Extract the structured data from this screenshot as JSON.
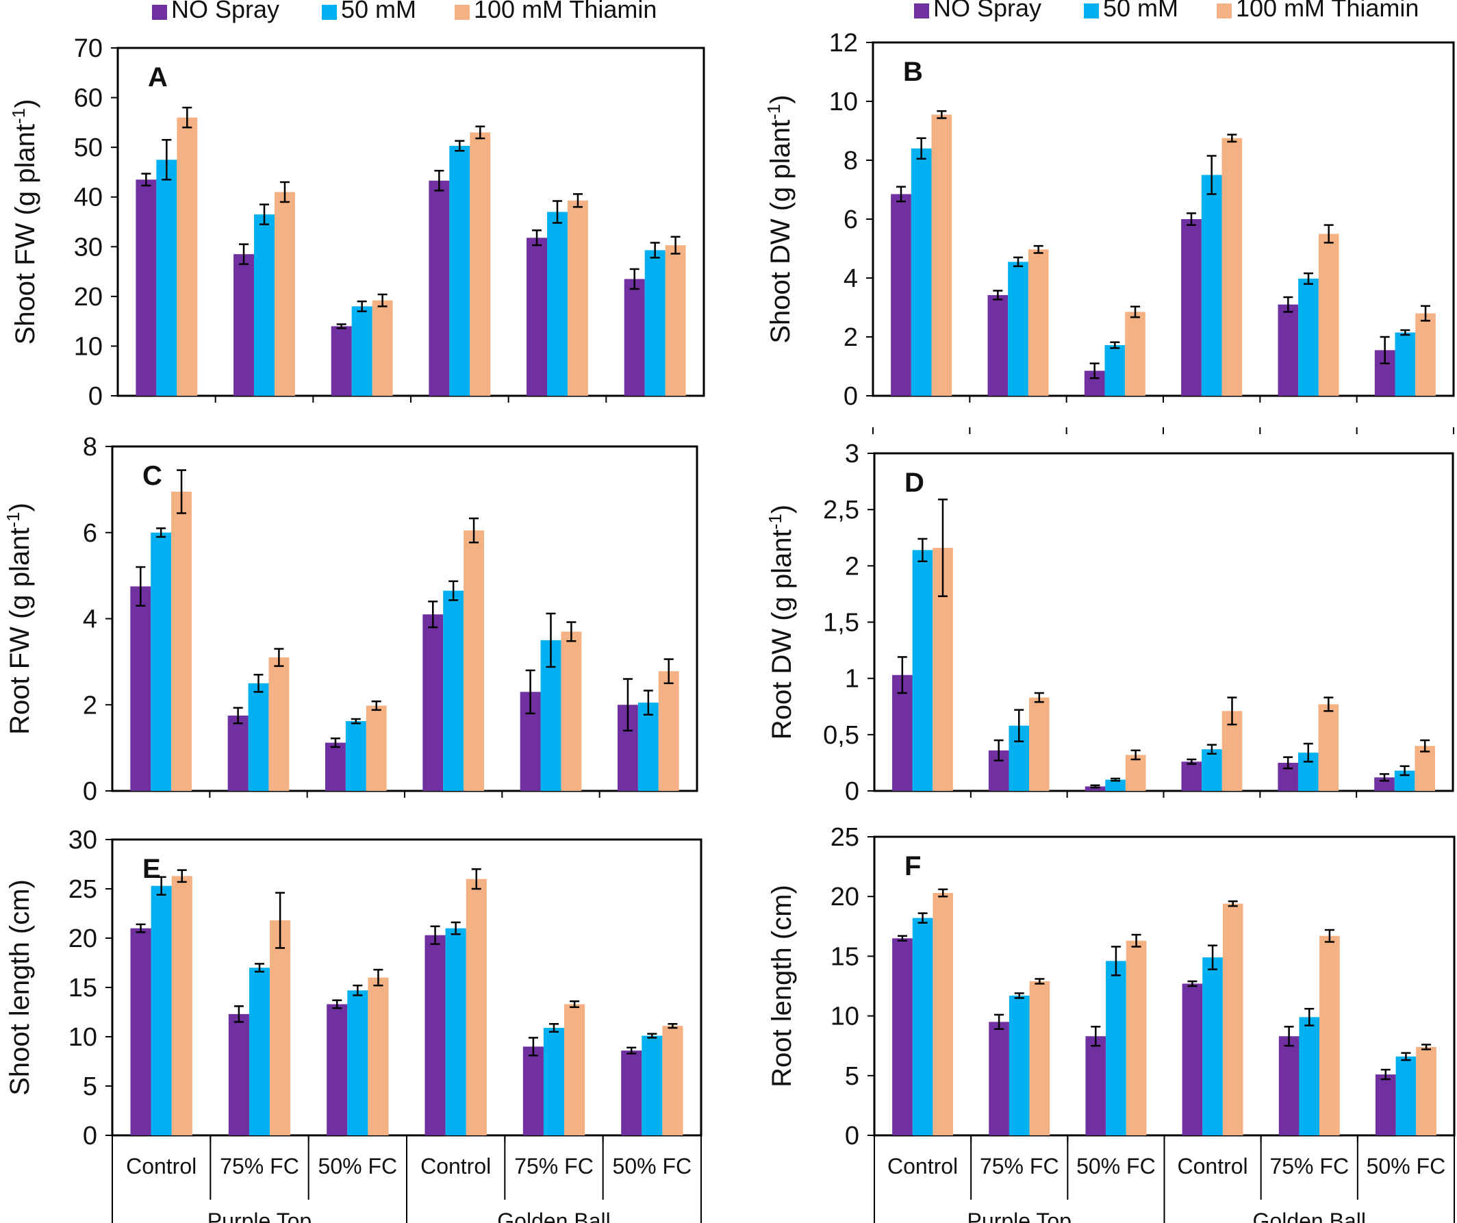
{
  "legend": {
    "entries": [
      {
        "label": "NO Spray",
        "color": "#7030a0"
      },
      {
        "label": "50 mM",
        "color": "#00b0f0"
      },
      {
        "label": "100 mM Thiamin",
        "color": "#f4b183"
      }
    ]
  },
  "x_axis": {
    "categories": [
      "Control",
      "75% FC",
      "50% FC",
      "Control",
      "75% FC",
      "50% FC"
    ],
    "groups": [
      "Purple Top",
      "Golden Ball"
    ]
  },
  "chart_data": [
    {
      "type": "bar",
      "panel": "A",
      "ylabel": "Shoot FW (g plant-1)",
      "ylim": [
        0,
        70
      ],
      "yticks": [
        "0",
        "10",
        "20",
        "30",
        "40",
        "50",
        "60",
        "70"
      ],
      "series": [
        {
          "name": "NO Spray",
          "values": [
            43.5,
            28.5,
            14.0,
            43.3,
            31.8,
            23.5
          ],
          "errors": [
            1.2,
            2.0,
            0.4,
            2.0,
            1.5,
            2.0
          ]
        },
        {
          "name": "50 mM",
          "values": [
            47.5,
            36.5,
            18.0,
            50.3,
            37.0,
            29.3
          ],
          "errors": [
            4.0,
            2.0,
            1.0,
            1.0,
            2.2,
            1.5
          ]
        },
        {
          "name": "100 mM Thiamin",
          "values": [
            56.0,
            41.0,
            19.2,
            53.0,
            39.3,
            30.3
          ],
          "errors": [
            2.0,
            2.0,
            1.2,
            1.2,
            1.3,
            1.7
          ]
        }
      ]
    },
    {
      "type": "bar",
      "panel": "B",
      "ylabel": "Shoot DW (g plant-1)",
      "ylim": [
        0,
        12
      ],
      "yticks": [
        "0",
        "2",
        "4",
        "6",
        "8",
        "10",
        "12"
      ],
      "series": [
        {
          "name": "NO Spray",
          "values": [
            6.85,
            3.42,
            0.85,
            6.0,
            3.1,
            1.55
          ],
          "errors": [
            0.25,
            0.15,
            0.25,
            0.2,
            0.25,
            0.45
          ]
        },
        {
          "name": "50 mM",
          "values": [
            8.4,
            4.55,
            1.72,
            7.5,
            3.98,
            2.15
          ],
          "errors": [
            0.35,
            0.15,
            0.1,
            0.65,
            0.18,
            0.08
          ]
        },
        {
          "name": "100 mM Thiamin",
          "values": [
            9.55,
            4.97,
            2.85,
            8.75,
            5.5,
            2.8
          ],
          "errors": [
            0.12,
            0.12,
            0.18,
            0.12,
            0.3,
            0.25
          ]
        }
      ]
    },
    {
      "type": "bar",
      "panel": "C",
      "ylabel": "Root FW (g plant-1)",
      "ylim": [
        0,
        8
      ],
      "yticks": [
        "0",
        "2",
        "4",
        "6",
        "8"
      ],
      "series": [
        {
          "name": "NO Spray",
          "values": [
            4.75,
            1.75,
            1.12,
            4.1,
            2.3,
            2.0
          ],
          "errors": [
            0.45,
            0.18,
            0.1,
            0.3,
            0.5,
            0.6
          ]
        },
        {
          "name": "50 mM",
          "values": [
            6.0,
            2.5,
            1.62,
            4.65,
            3.5,
            2.05
          ],
          "errors": [
            0.1,
            0.2,
            0.05,
            0.22,
            0.62,
            0.28
          ]
        },
        {
          "name": "100 mM Thiamin",
          "values": [
            6.95,
            3.1,
            1.98,
            6.05,
            3.7,
            2.78
          ],
          "errors": [
            0.5,
            0.2,
            0.1,
            0.28,
            0.22,
            0.28
          ]
        }
      ]
    },
    {
      "type": "bar",
      "panel": "D",
      "ylabel": "Root DW (g plant-1)",
      "ylim": [
        0,
        3
      ],
      "yticks": [
        "0",
        "0,5",
        "1",
        "1,5",
        "2",
        "2,5",
        "3"
      ],
      "series": [
        {
          "name": "NO Spray",
          "values": [
            1.03,
            0.36,
            0.04,
            0.26,
            0.25,
            0.12
          ],
          "errors": [
            0.16,
            0.09,
            0.01,
            0.02,
            0.05,
            0.03
          ]
        },
        {
          "name": "50 mM",
          "values": [
            2.14,
            0.58,
            0.1,
            0.37,
            0.34,
            0.18
          ],
          "errors": [
            0.1,
            0.14,
            0.01,
            0.04,
            0.08,
            0.04
          ]
        },
        {
          "name": "100 mM Thiamin",
          "values": [
            2.16,
            0.83,
            0.32,
            0.71,
            0.77,
            0.4
          ],
          "errors": [
            0.43,
            0.04,
            0.04,
            0.12,
            0.06,
            0.05
          ]
        }
      ]
    },
    {
      "type": "bar",
      "panel": "E",
      "ylabel": "Shoot length (cm)",
      "ylim": [
        0,
        30
      ],
      "yticks": [
        "0",
        "5",
        "10",
        "15",
        "20",
        "25",
        "30"
      ],
      "series": [
        {
          "name": "NO Spray",
          "values": [
            21.0,
            12.3,
            13.3,
            20.3,
            9.0,
            8.6
          ],
          "errors": [
            0.4,
            0.8,
            0.4,
            0.9,
            0.9,
            0.3
          ]
        },
        {
          "name": "50 mM",
          "values": [
            25.3,
            17.0,
            14.7,
            21.0,
            10.9,
            10.1
          ],
          "errors": [
            0.9,
            0.4,
            0.5,
            0.6,
            0.4,
            0.2
          ]
        },
        {
          "name": "100 mM Thiamin",
          "values": [
            26.3,
            21.8,
            16.0,
            26.0,
            13.3,
            11.1
          ],
          "errors": [
            0.6,
            2.8,
            0.8,
            1.0,
            0.3,
            0.2
          ]
        }
      ]
    },
    {
      "type": "bar",
      "panel": "F",
      "ylabel": "Root length (cm)",
      "ylim": [
        0,
        25
      ],
      "yticks": [
        "0",
        "5",
        "10",
        "15",
        "20",
        "25"
      ],
      "series": [
        {
          "name": "NO Spray",
          "values": [
            16.5,
            9.5,
            8.3,
            12.7,
            8.3,
            5.1
          ],
          "errors": [
            0.2,
            0.6,
            0.8,
            0.2,
            0.8,
            0.4
          ]
        },
        {
          "name": "50 mM",
          "values": [
            18.2,
            11.7,
            14.6,
            14.9,
            9.9,
            6.6
          ],
          "errors": [
            0.4,
            0.2,
            1.2,
            1.0,
            0.7,
            0.3
          ]
        },
        {
          "name": "100 mM Thiamin",
          "values": [
            20.3,
            12.9,
            16.3,
            19.4,
            16.7,
            7.4
          ],
          "errors": [
            0.3,
            0.2,
            0.5,
            0.2,
            0.5,
            0.2
          ]
        }
      ]
    }
  ]
}
